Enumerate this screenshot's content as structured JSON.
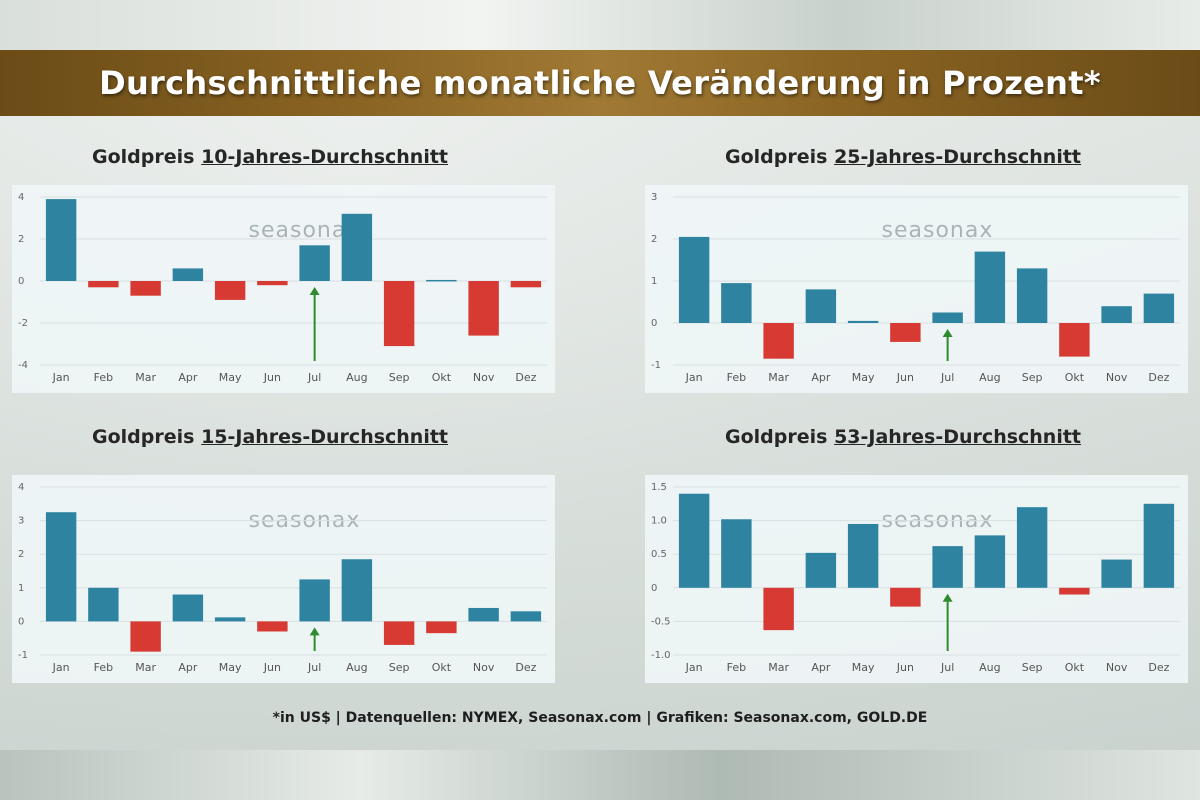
{
  "title": "Durchschnittliche monatliche Veränderung in Prozent*",
  "footer": "*in US$ | Datenquellen: NYMEX, Seasonax.com | Grafiken: Seasonax.com, GOLD.DE",
  "colors": {
    "positive": "#2e84a0",
    "negative": "#d63a32",
    "arrow": "#2e8b2e",
    "banner": "#8a6423"
  },
  "watermark": "seasonax",
  "chart_data": [
    {
      "type": "bar",
      "title_prefix": "Goldpreis ",
      "title_underlined": "10-Jahres-Durchschnitt",
      "categories": [
        "Jan",
        "Feb",
        "Mar",
        "Apr",
        "May",
        "Jun",
        "Jul",
        "Aug",
        "Sep",
        "Okt",
        "Nov",
        "Dez"
      ],
      "values": [
        3.9,
        -0.3,
        -0.7,
        0.6,
        -0.9,
        -0.2,
        1.7,
        3.2,
        -3.1,
        0.05,
        -2.6,
        -0.3
      ],
      "yticks": [
        "4",
        "2",
        "0",
        "-2",
        "-4"
      ],
      "ylim": [
        -4,
        4
      ],
      "arrow_category": "Jul"
    },
    {
      "type": "bar",
      "title_prefix": "Goldpreis ",
      "title_underlined": "25-Jahres-Durchschnitt",
      "categories": [
        "Jan",
        "Feb",
        "Mar",
        "Apr",
        "May",
        "Jun",
        "Jul",
        "Aug",
        "Sep",
        "Okt",
        "Nov",
        "Dez"
      ],
      "values": [
        2.05,
        0.95,
        -0.85,
        0.8,
        0.05,
        -0.45,
        0.25,
        1.7,
        1.3,
        -0.8,
        0.4,
        0.7
      ],
      "yticks": [
        "3",
        "2",
        "1",
        "0",
        "-1"
      ],
      "ylim": [
        -1,
        3
      ],
      "arrow_category": "Jul"
    },
    {
      "type": "bar",
      "title_prefix": "Goldpreis ",
      "title_underlined": "15-Jahres-Durchschnitt",
      "categories": [
        "Jan",
        "Feb",
        "Mar",
        "Apr",
        "May",
        "Jun",
        "Jul",
        "Aug",
        "Sep",
        "Okt",
        "Nov",
        "Dez"
      ],
      "values": [
        3.25,
        1.0,
        -0.9,
        0.8,
        0.12,
        -0.3,
        1.25,
        1.85,
        -0.7,
        -0.35,
        0.4,
        0.3
      ],
      "yticks": [
        "4",
        "3",
        "2",
        "1",
        "0",
        "-1"
      ],
      "ylim": [
        -1,
        4
      ],
      "arrow_category": "Jul"
    },
    {
      "type": "bar",
      "title_prefix": "Goldpreis ",
      "title_underlined": "53-Jahres-Durchschnitt",
      "categories": [
        "Jan",
        "Feb",
        "Mar",
        "Apr",
        "May",
        "Jun",
        "Jul",
        "Aug",
        "Sep",
        "Okt",
        "Nov",
        "Dez"
      ],
      "values": [
        1.4,
        1.02,
        -0.63,
        0.52,
        0.95,
        -0.28,
        0.62,
        0.78,
        1.2,
        -0.1,
        0.42,
        1.25
      ],
      "yticks": [
        "1.5",
        "1.0",
        "0.5",
        "0",
        "-0.5",
        "-1.0"
      ],
      "ylim": [
        -1.0,
        1.5
      ],
      "arrow_category": "Jul"
    }
  ]
}
